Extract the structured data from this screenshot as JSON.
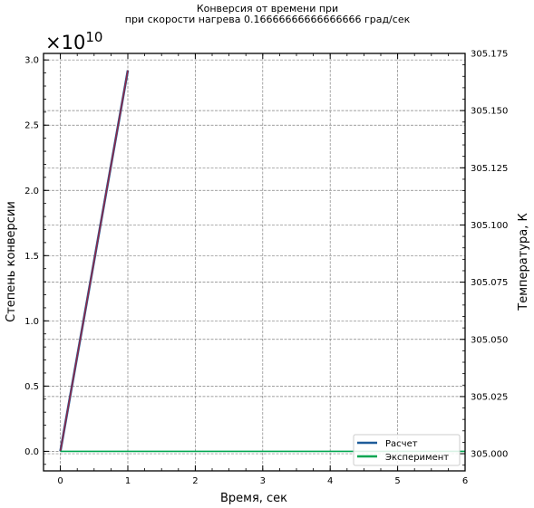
{
  "chart_data": {
    "type": "line",
    "title_line1": "Конверсия от времени при",
    "title_line2": "при скорости нагрева 0.16666666666666666 град/сек",
    "xlabel": "Время, сек",
    "ylabel_left": "Степень конверсии",
    "ylabel_right": "Температура, К",
    "offset_text": "×10",
    "offset_exponent": "10",
    "xlim": [
      -0.25,
      6
    ],
    "ylim_left": [
      -0.15,
      3.05
    ],
    "ylim_right": [
      304.9925,
      305.175
    ],
    "x_ticks": [
      0,
      1,
      2,
      3,
      4,
      5,
      6
    ],
    "x_tick_labels": [
      "0",
      "1",
      "2",
      "3",
      "4",
      "5",
      "6"
    ],
    "y_left_ticks": [
      0.0,
      0.5,
      1.0,
      1.5,
      2.0,
      2.5,
      3.0
    ],
    "y_left_tick_labels": [
      "0.0",
      "0.5",
      "1.0",
      "1.5",
      "2.0",
      "2.5",
      "3.0"
    ],
    "y_right_ticks": [
      305.0,
      305.025,
      305.05,
      305.075,
      305.1,
      305.125,
      305.15,
      305.175
    ],
    "y_right_tick_labels": [
      "305.000",
      "305.025",
      "305.050",
      "305.075",
      "305.100",
      "305.125",
      "305.150",
      "305.175"
    ],
    "series": [
      {
        "name": "Расчет",
        "color": "#1f5c99",
        "axis": "left",
        "x": [
          0,
          1
        ],
        "y": [
          0.0,
          2.92
        ]
      },
      {
        "name": "Расчет",
        "color": "#8b2a4a",
        "axis": "left",
        "x": [
          0,
          1
        ],
        "y": [
          0.0,
          2.92
        ]
      },
      {
        "name": "Эксперимент",
        "color": "#00a650",
        "axis": "left",
        "x": [
          0,
          6
        ],
        "y": [
          0.0,
          0.0
        ]
      }
    ],
    "legend": {
      "placement": "bottom-right",
      "entries": [
        {
          "label": "Расчет",
          "color": "#1f5c99"
        },
        {
          "label": "Эксперимент",
          "color": "#00a650"
        }
      ]
    },
    "grid": true
  }
}
